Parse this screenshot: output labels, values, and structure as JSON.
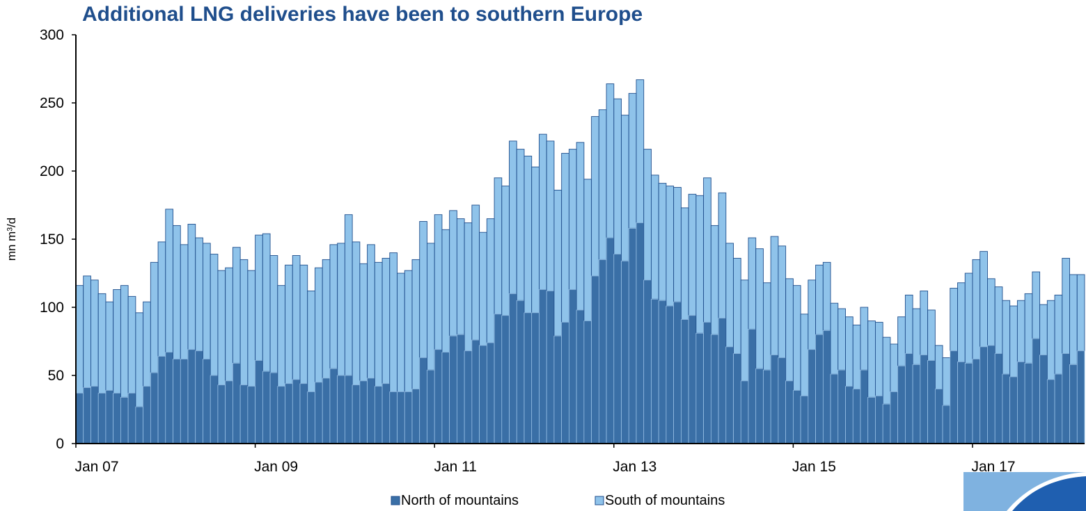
{
  "chart_data": {
    "type": "bar",
    "stacked": true,
    "title": "Additional LNG deliveries have been to southern Europe",
    "ylabel": "mn m³/d",
    "xlabel": "",
    "ylim": [
      0,
      300
    ],
    "yticks": [
      0,
      50,
      100,
      150,
      200,
      250,
      300
    ],
    "xtick_labels": [
      "Jan 07",
      "Jan 09",
      "Jan 11",
      "Jan 13",
      "Jan 15",
      "Jan 17"
    ],
    "x_start": "Jan 07",
    "legend_position": "bottom",
    "grid": false,
    "series": [
      {
        "name": "North of mountains",
        "color": "#3a6fa6",
        "values": [
          37,
          41,
          42,
          37,
          39,
          37,
          34,
          37,
          27,
          42,
          52,
          64,
          67,
          62,
          62,
          69,
          68,
          62,
          50,
          43,
          46,
          59,
          43,
          42,
          61,
          53,
          52,
          42,
          44,
          47,
          44,
          38,
          45,
          48,
          55,
          50,
          50,
          43,
          46,
          48,
          42,
          44,
          38,
          38,
          38,
          40,
          63,
          54,
          69,
          67,
          79,
          80,
          68,
          76,
          72,
          74,
          95,
          94,
          110,
          105,
          96,
          96,
          113,
          112,
          79,
          89,
          113,
          98,
          90,
          123,
          135,
          151,
          139,
          134,
          158,
          162,
          120,
          106,
          105,
          101,
          104,
          91,
          94,
          81,
          89,
          80,
          92,
          71,
          66,
          46,
          84,
          55,
          54,
          65,
          63,
          46,
          39,
          35,
          69,
          80,
          83,
          51,
          54,
          42,
          40,
          54,
          34,
          35,
          29,
          38,
          57,
          66,
          58,
          65,
          61,
          40,
          28,
          68,
          60,
          59,
          62,
          71,
          72,
          66,
          51,
          49,
          60,
          59,
          77,
          65,
          47,
          51,
          66,
          58,
          68
        ],
        "totals": [
          116,
          123,
          120,
          110,
          104,
          113,
          116,
          108,
          96,
          104,
          133,
          148,
          172,
          160,
          146,
          161,
          151,
          147,
          139,
          127,
          129,
          144,
          135,
          127,
          153,
          154,
          138,
          116,
          131,
          138,
          131,
          112,
          129,
          135,
          146,
          147,
          168,
          148,
          132,
          146,
          133,
          136,
          140,
          125,
          127,
          135,
          163,
          147,
          168,
          157,
          171,
          165,
          162,
          175,
          155,
          165,
          195,
          189,
          222,
          216,
          211,
          203,
          227,
          222,
          186,
          213,
          216,
          221,
          194,
          240,
          245,
          264,
          253,
          241,
          257,
          267,
          216,
          197,
          191,
          189,
          188,
          173,
          183,
          182,
          195,
          160,
          184,
          147,
          136,
          120,
          151,
          143,
          118,
          152,
          145,
          121,
          116,
          95,
          120,
          131,
          133,
          103,
          99,
          93,
          87,
          100,
          90,
          89,
          78,
          73,
          93,
          109,
          99,
          112,
          98,
          72,
          63,
          114,
          118,
          125,
          135,
          141,
          121,
          115,
          105,
          101,
          105,
          110,
          126,
          102,
          105,
          109,
          136,
          124,
          124
        ]
      },
      {
        "name": "South of mountains",
        "color": "#8fc3ea"
      }
    ]
  },
  "logo": {
    "description_name": "ieefa-corner-logo"
  }
}
